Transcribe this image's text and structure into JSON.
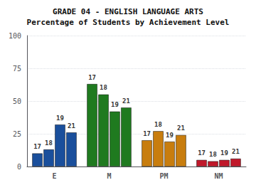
{
  "chart_data": {
    "type": "bar",
    "title": "GRADE 04 - ENGLISH LANGUAGE ARTS\nPercentage of Students by Achievement Level",
    "categories": [
      "E",
      "M",
      "PM",
      "NM"
    ],
    "series": [
      {
        "name": "17",
        "values": [
          10,
          63,
          20,
          5
        ]
      },
      {
        "name": "18",
        "values": [
          13,
          55,
          27,
          4
        ]
      },
      {
        "name": "19",
        "values": [
          32,
          42,
          19,
          5
        ]
      },
      {
        "name": "21",
        "values": [
          26,
          45,
          24,
          6
        ]
      }
    ],
    "colors": [
      "#1a4f9c",
      "#1f7a1f",
      "#c87d0e",
      "#c0182a"
    ],
    "ylim": [
      0,
      100
    ],
    "yticks": [
      0,
      25,
      50,
      75,
      100
    ],
    "grid": true
  }
}
